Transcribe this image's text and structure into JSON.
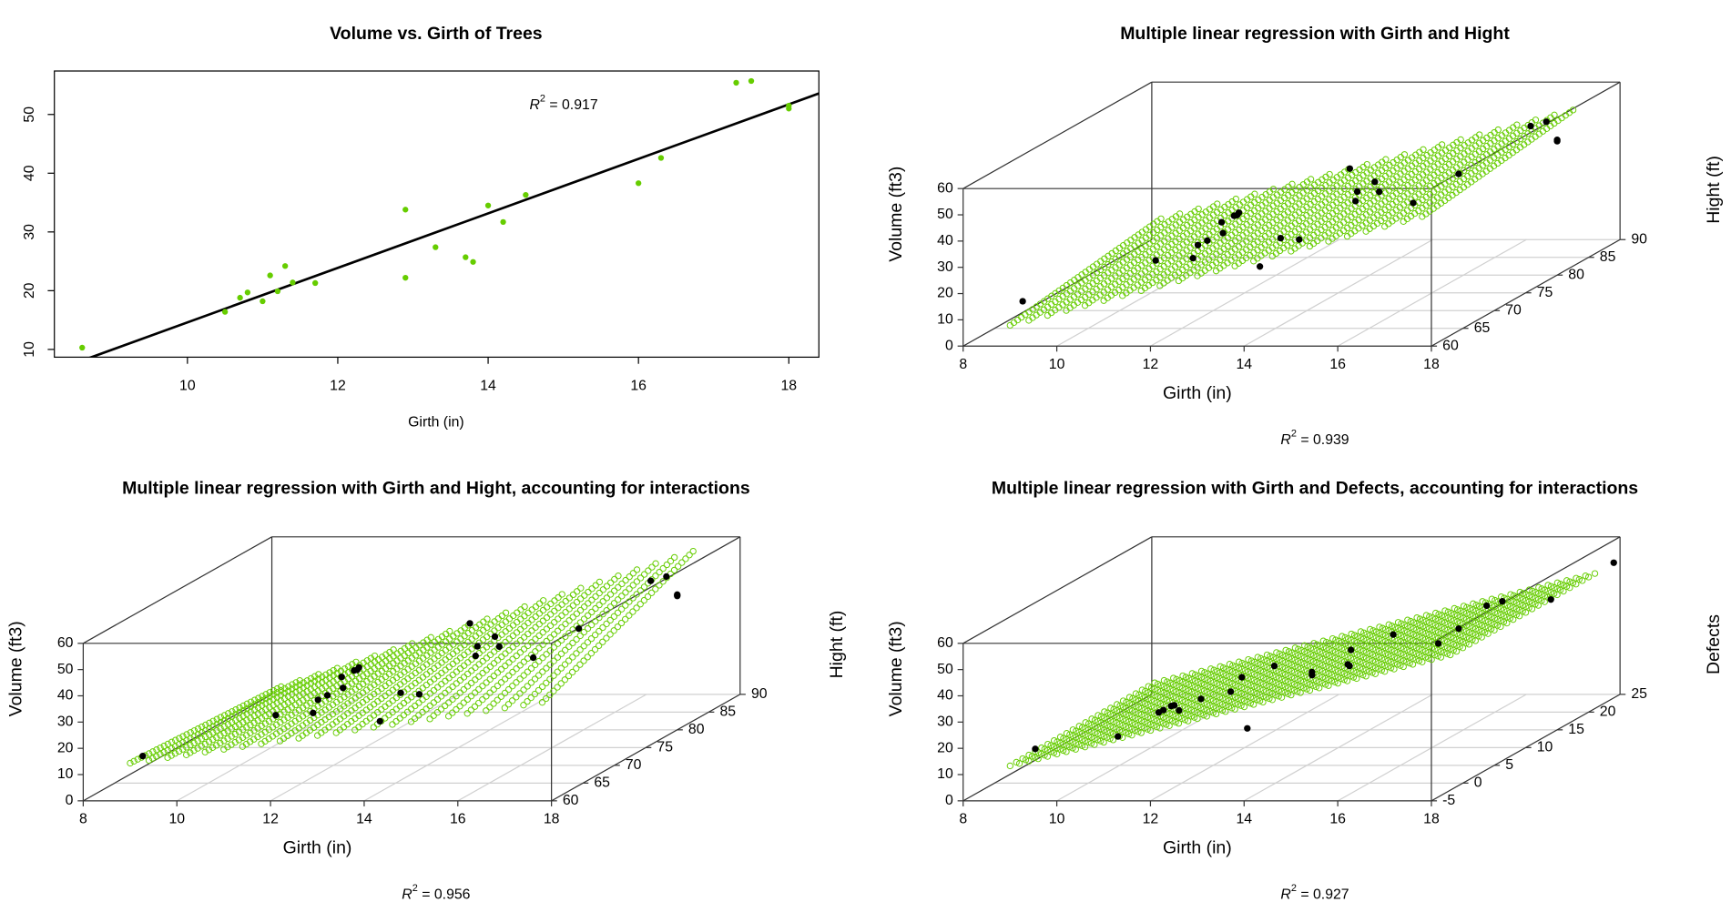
{
  "chart_data": [
    {
      "type": "scatter",
      "title": "Volume vs. Girth of Trees",
      "x_label": "Girth (in)",
      "x": [
        8.6,
        10.5,
        10.7,
        10.8,
        11.0,
        11.1,
        11.2,
        11.3,
        11.4,
        11.7,
        12.9,
        12.9,
        13.3,
        13.7,
        13.8,
        14.0,
        14.2,
        14.5,
        16.0,
        16.3,
        17.3,
        17.5,
        18.0,
        18.0
      ],
      "values": [
        10.3,
        16.4,
        18.8,
        19.7,
        18.2,
        22.6,
        19.9,
        24.2,
        21.4,
        21.3,
        22.2,
        33.8,
        27.4,
        25.7,
        24.9,
        34.5,
        31.7,
        36.3,
        38.3,
        42.6,
        55.4,
        55.7,
        51.5,
        51.0
      ],
      "color": "#66cd00",
      "fit": {
        "intercept": -31.8,
        "slope": 4.64,
        "color": "#000000"
      },
      "annotation": [
        "R",
        "2",
        " = 0.917"
      ],
      "xlim": [
        8.23,
        18.4
      ],
      "ylim": [
        8.68,
        57.4
      ],
      "xticks": [
        10,
        12,
        14,
        16,
        18
      ],
      "yticks": [
        10,
        20,
        30,
        40,
        50
      ]
    },
    {
      "type": "scatter3d",
      "title": "Multiple linear regression with Girth and Hight",
      "x_label": "Girth (in)",
      "y_label": "Hight (ft)",
      "z_label": "Volume (ft3)",
      "x": [
        8.6,
        10.5,
        10.7,
        10.8,
        11.0,
        11.1,
        11.2,
        11.3,
        11.4,
        11.7,
        12.9,
        12.9,
        13.3,
        13.7,
        13.8,
        14.0,
        14.2,
        14.5,
        16.0,
        16.3,
        17.3,
        17.5,
        18.0,
        18.0
      ],
      "y": [
        65,
        72,
        81,
        83,
        75,
        80,
        75,
        79,
        76,
        69,
        74,
        85,
        86,
        71,
        64,
        78,
        80,
        74,
        72,
        77,
        81,
        82,
        80,
        80
      ],
      "values": [
        10.3,
        16.4,
        18.8,
        19.7,
        18.2,
        22.6,
        19.9,
        24.2,
        21.4,
        21.3,
        22.2,
        33.8,
        27.4,
        25.7,
        24.9,
        34.5,
        31.7,
        36.3,
        38.3,
        42.6,
        55.4,
        55.7,
        51.5,
        51.0
      ],
      "point_color": "#000000",
      "surface": {
        "color": "#66cd00",
        "x_range": [
          8.6,
          17.4
        ],
        "x_step": 0.4,
        "y_range": [
          63,
          87
        ],
        "y_step": 0.6,
        "coef": {
          "intercept": -57.99,
          "x": 4.708,
          "y": 0.339
        }
      },
      "annotation": [
        "R",
        "2",
        " = 0.939"
      ],
      "xlim": [
        8,
        18
      ],
      "ylim": [
        60,
        90
      ],
      "zlim": [
        0,
        60
      ],
      "xticks": [
        8,
        10,
        12,
        14,
        16,
        18
      ],
      "yticks": [
        60,
        65,
        70,
        75,
        80,
        85,
        90
      ],
      "zticks": [
        0,
        10,
        20,
        30,
        40,
        50,
        60
      ],
      "grid": true
    },
    {
      "type": "scatter3d",
      "title": "Multiple linear regression with Girth and Hight, accounting for interactions",
      "x_label": "Girth (in)",
      "y_label": "Hight (ft)",
      "z_label": "Volume (ft3)",
      "x": [
        8.6,
        10.5,
        10.7,
        10.8,
        11.0,
        11.1,
        11.2,
        11.3,
        11.4,
        11.7,
        12.9,
        12.9,
        13.3,
        13.7,
        13.8,
        14.0,
        14.2,
        14.5,
        16.0,
        16.3,
        17.3,
        17.5,
        18.0,
        18.0
      ],
      "y": [
        65,
        72,
        81,
        83,
        75,
        80,
        75,
        79,
        76,
        69,
        74,
        85,
        86,
        71,
        64,
        78,
        80,
        74,
        72,
        77,
        81,
        82,
        80,
        80
      ],
      "values": [
        10.3,
        16.4,
        18.8,
        19.7,
        18.2,
        22.6,
        19.9,
        24.2,
        21.4,
        21.3,
        22.2,
        33.8,
        27.4,
        25.7,
        24.9,
        34.5,
        31.7,
        36.3,
        38.3,
        42.6,
        55.4,
        55.7,
        51.5,
        51.0
      ],
      "point_color": "#000000",
      "surface": {
        "color": "#66cd00",
        "x_range": [
          8.6,
          17.4
        ],
        "x_step": 0.4,
        "y_range": [
          63,
          87
        ],
        "y_step": 0.6,
        "coef": {
          "intercept": 69.4,
          "x": -5.856,
          "y": -1.297,
          "xy": 0.1347
        }
      },
      "annotation": [
        "R",
        "2",
        " = 0.956"
      ],
      "xlim": [
        8,
        18
      ],
      "ylim": [
        60,
        90
      ],
      "zlim": [
        0,
        60
      ],
      "xticks": [
        8,
        10,
        12,
        14,
        16,
        18
      ],
      "yticks": [
        60,
        65,
        70,
        75,
        80,
        85,
        90
      ],
      "zticks": [
        0,
        10,
        20,
        30,
        40,
        50,
        60
      ],
      "grid": true
    },
    {
      "type": "scatter3d",
      "title": "Multiple linear regression with Girth and Defects, accounting for interactions",
      "x_label": "Girth (in)",
      "y_label": "Defects",
      "z_label": "Volume (ft3)",
      "x": [
        8.6,
        10.5,
        10.7,
        10.8,
        11.0,
        11.1,
        11.2,
        11.3,
        11.4,
        11.7,
        12.9,
        12.9,
        13.3,
        13.7,
        13.8,
        14.0,
        14.2,
        14.5,
        16.0,
        16.3,
        17.3,
        17.5,
        18.0,
        18.0
      ],
      "y": [
        2,
        1,
        6,
        6,
        7,
        5,
        9,
        4,
        14,
        10,
        14,
        8,
        11,
        14,
        -3,
        12,
        10,
        15,
        11,
        12,
        9,
        10,
        24,
        14
      ],
      "values": [
        10.3,
        16.4,
        18.8,
        19.7,
        18.2,
        22.6,
        19.9,
        24.2,
        21.4,
        21.3,
        22.2,
        33.8,
        27.4,
        25.7,
        24.9,
        34.5,
        31.7,
        36.3,
        38.3,
        42.6,
        55.4,
        55.7,
        51.5,
        51.0
      ],
      "point_color": "#000000",
      "surface": {
        "color": "#66cd00",
        "x_range": [
          8.6,
          18
        ],
        "x_step": 0.2,
        "y_range": [
          -2,
          21
        ],
        "y_step": 1,
        "coef": {
          "intercept": -29.3,
          "x": 4.49,
          "y": 0.05,
          "xy": -0.003
        }
      },
      "annotation": [
        "R",
        "2",
        " = 0.927"
      ],
      "xlim": [
        8,
        18
      ],
      "ylim": [
        -5,
        25
      ],
      "zlim": [
        0,
        60
      ],
      "xticks": [
        8,
        10,
        12,
        14,
        16,
        18
      ],
      "yticks": [
        -5,
        0,
        5,
        10,
        15,
        20,
        25
      ],
      "zticks": [
        0,
        10,
        20,
        30,
        40,
        50,
        60
      ],
      "grid": true
    }
  ]
}
